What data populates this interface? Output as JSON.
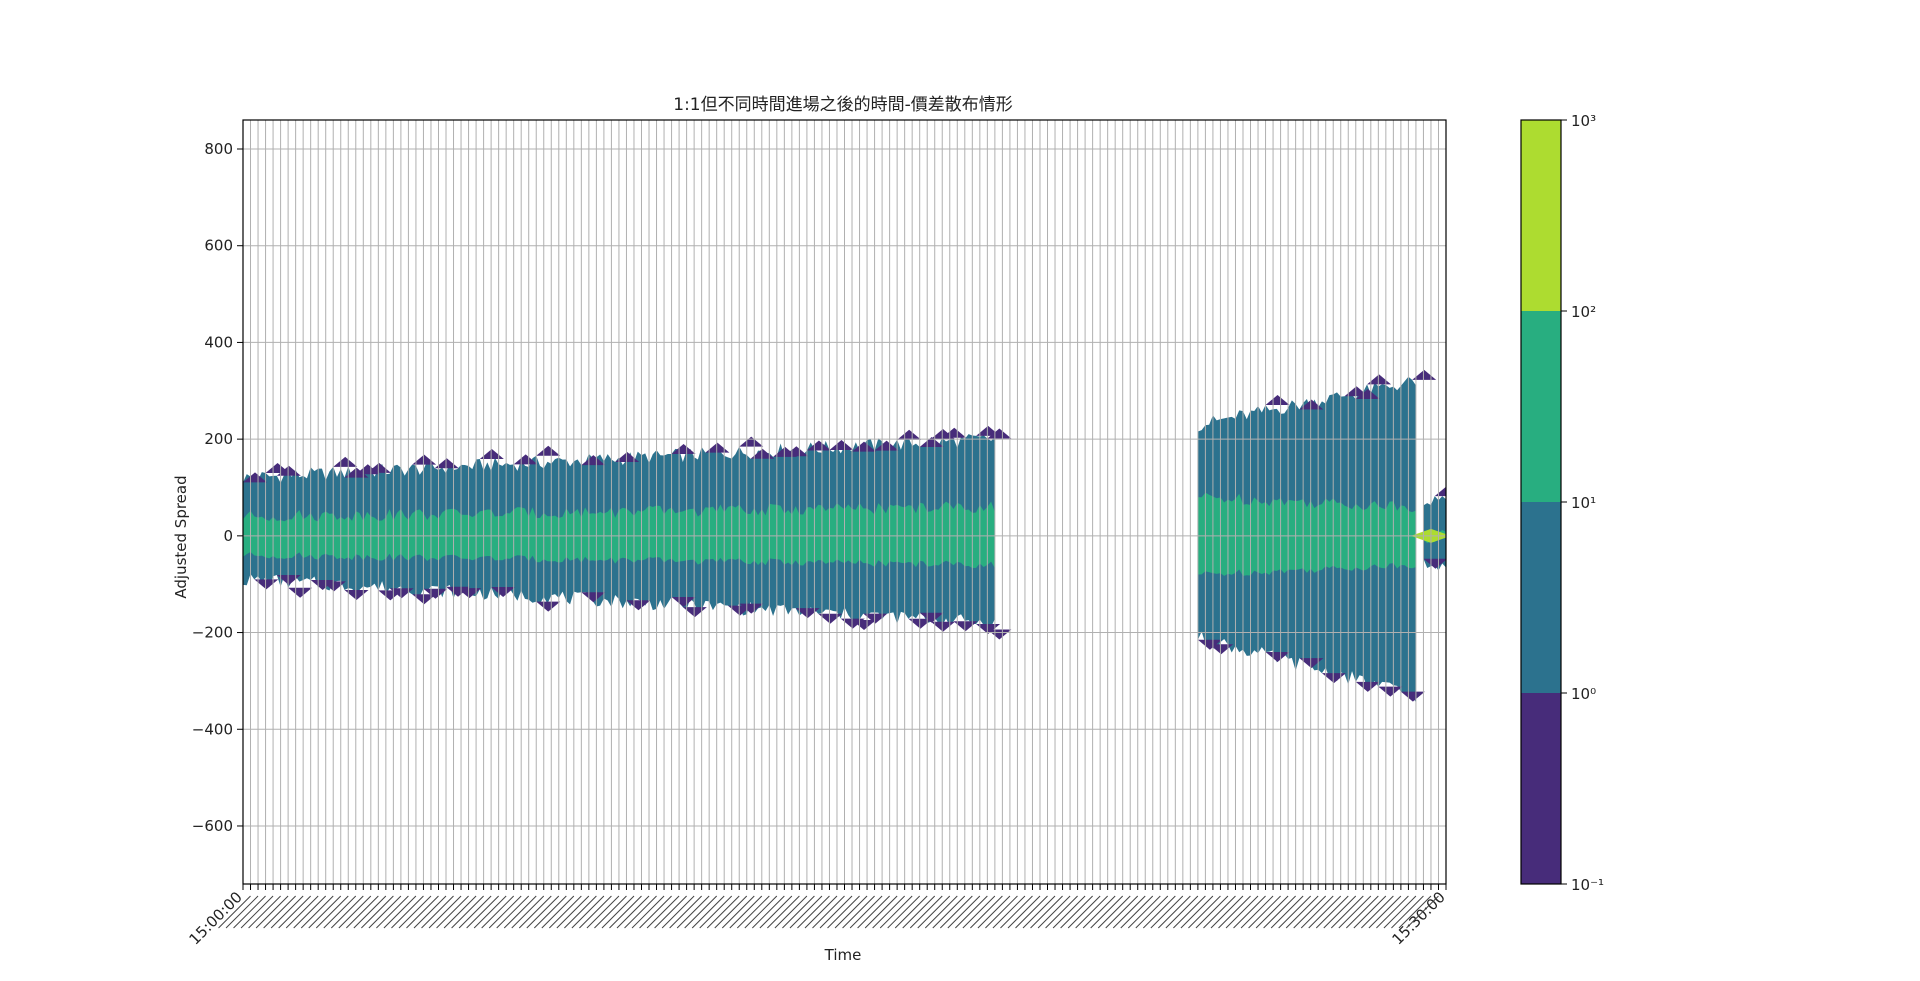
{
  "chart_data": {
    "type": "heatmap",
    "title": "1:1但不同時間進場之後的時間-價差散布情形",
    "xlabel": "Time",
    "ylabel": "Adjusted Spread",
    "ylim": [
      -720,
      860
    ],
    "yticks": [
      800,
      600,
      400,
      200,
      0,
      -200,
      -400,
      -600
    ],
    "ytick_labels": [
      "800",
      "600",
      "400",
      "200",
      "0",
      "−200",
      "−400",
      "−600"
    ],
    "grid": true,
    "x_tick_count": 160,
    "x_tick_labels_visible": [
      "15:00:00",
      "15:30:00"
    ],
    "colorbar": {
      "scale": "log",
      "levels": [
        {
          "label": "10⁻¹",
          "color": "#472c7a"
        },
        {
          "label": "10⁰",
          "color": "#2c728e"
        },
        {
          "label": "10¹",
          "color": "#28ae80"
        },
        {
          "label": "10²",
          "color": "#addc30"
        },
        {
          "label": "10³",
          "color": ""
        }
      ]
    },
    "colors": {
      "level_0_1": "#472c7a",
      "level_1_10": "#2c728e",
      "level_10_100": "#28ae80",
      "level_100_1000": "#addc30",
      "grid": "#b0b0b0"
    },
    "data_segments": [
      {
        "name": "segment-1",
        "x_start": 0,
        "x_end": 100,
        "outer_top_start": 120,
        "outer_top_end": 200,
        "outer_bot_start": -90,
        "outer_bot_end": -180,
        "inner_half_start": 40,
        "inner_half_end": 60
      },
      {
        "name": "segment-2",
        "x_start": 127,
        "x_end": 156,
        "outer_top_start": 230,
        "outer_top_end": 320,
        "outer_bot_start": -210,
        "outer_bot_end": -330,
        "inner_half_start": 80,
        "inner_half_end": 60
      },
      {
        "name": "segment-3",
        "x_start": 157,
        "x_end": 160,
        "outer_top_start": 70,
        "outer_top_end": 70,
        "outer_bot_start": -60,
        "outer_bot_end": -60,
        "inner_half_start": 10,
        "inner_half_end": 5
      }
    ]
  }
}
